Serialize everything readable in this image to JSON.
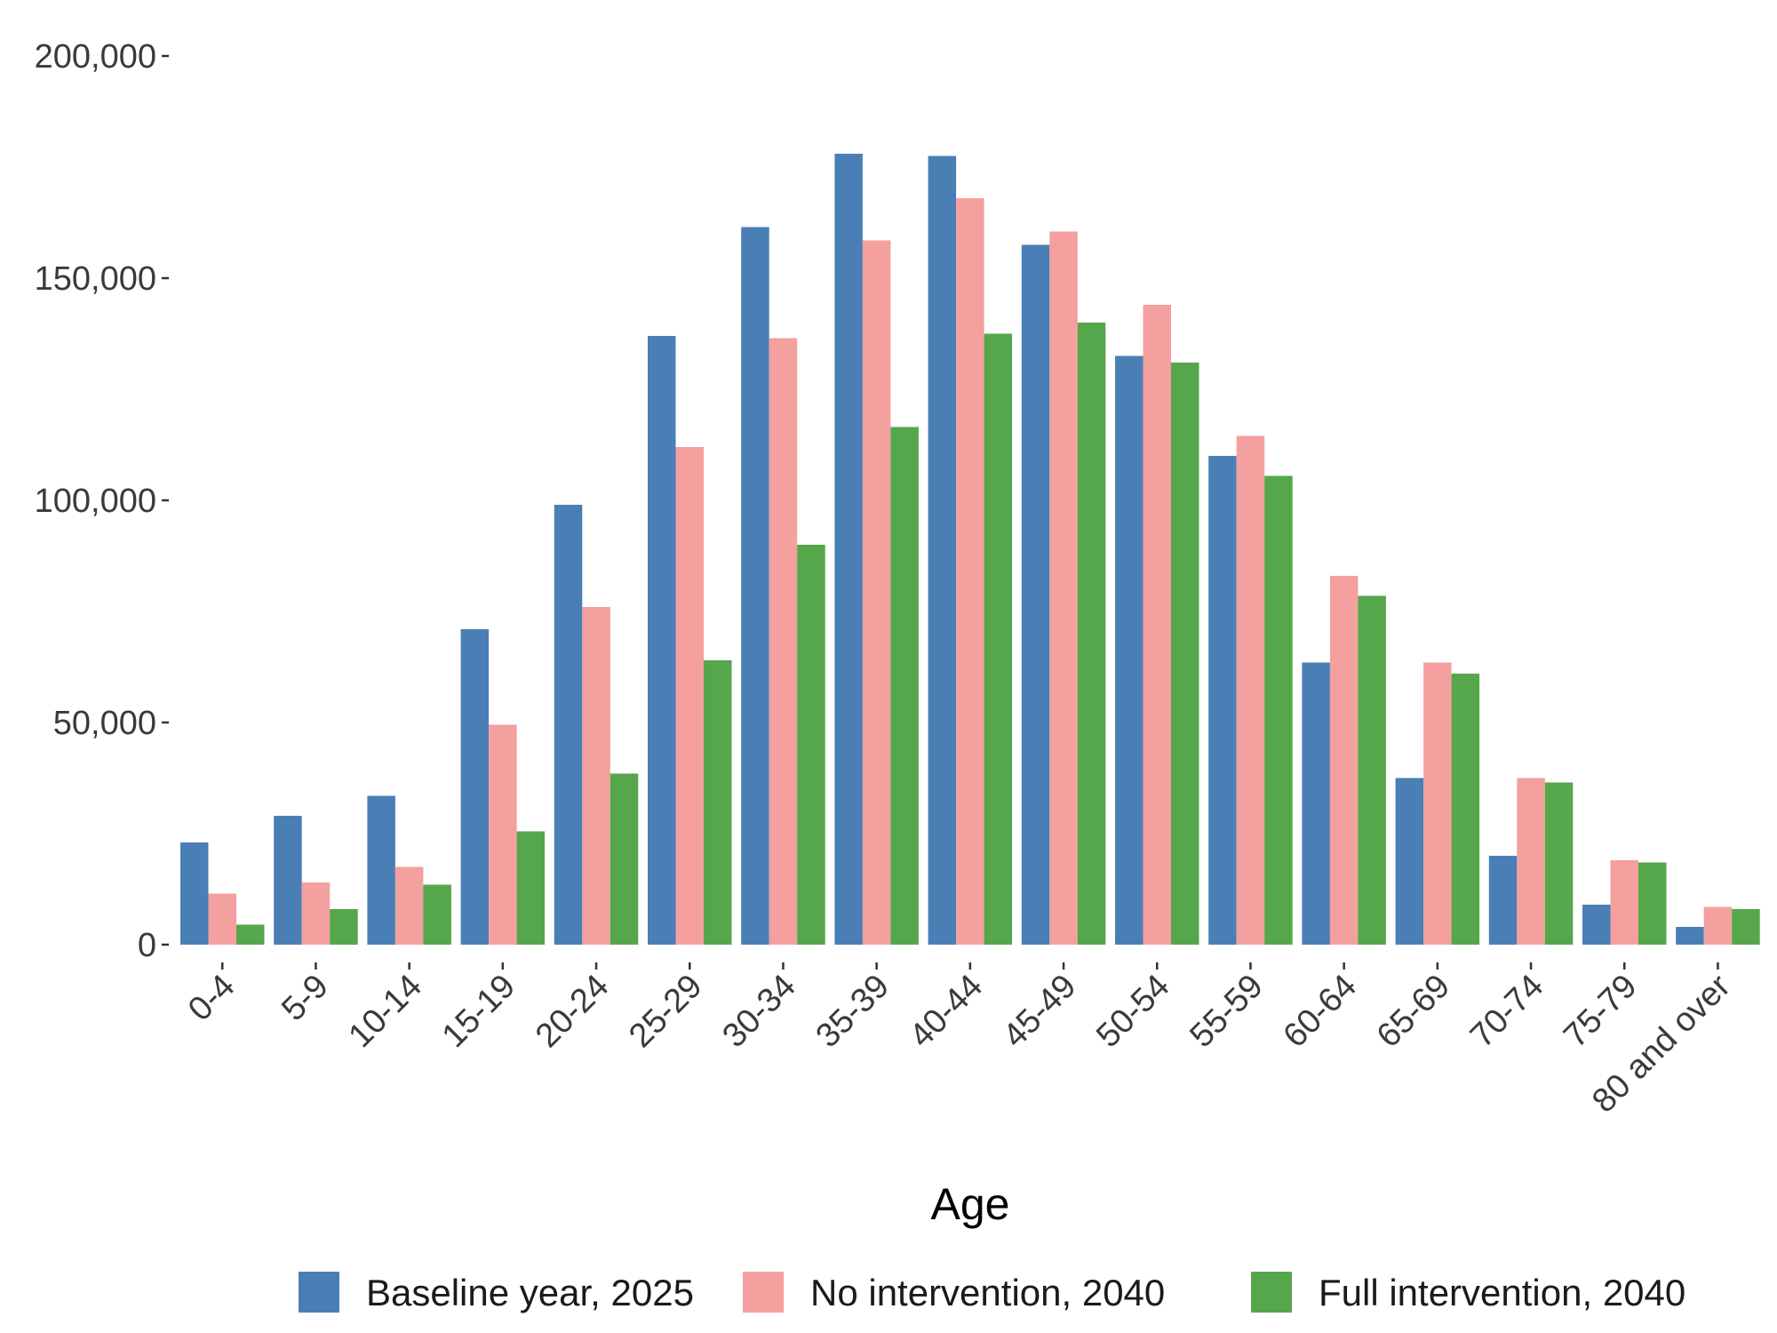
{
  "chart_data": {
    "type": "bar",
    "title": "",
    "xlabel": "Age",
    "ylabel": "",
    "ylim": [
      0,
      200000
    ],
    "yticks": [
      0,
      50000,
      100000,
      150000,
      200000
    ],
    "ytick_labels": [
      "0",
      "50,000",
      "100,000",
      "150,000",
      "200,000"
    ],
    "grid": false,
    "legend_position": "bottom",
    "categories": [
      "0-4",
      "5-9",
      "10-14",
      "15-19",
      "20-24",
      "25-29",
      "30-34",
      "35-39",
      "40-44",
      "45-49",
      "50-54",
      "55-59",
      "60-64",
      "65-69",
      "70-74",
      "75-79",
      "80 and over"
    ],
    "series": [
      {
        "name": "Baseline year, 2025",
        "color": "#4A7FB5",
        "values": [
          23000,
          29000,
          33500,
          71000,
          99000,
          137000,
          161500,
          178000,
          177500,
          157500,
          132500,
          110000,
          63500,
          37500,
          20000,
          9000,
          4000
        ]
      },
      {
        "name": "No intervention, 2040",
        "color": "#F4A09E",
        "values": [
          11500,
          14000,
          17500,
          49500,
          76000,
          112000,
          136500,
          158500,
          168000,
          160500,
          144000,
          114500,
          83000,
          63500,
          37500,
          19000,
          8500
        ]
      },
      {
        "name": "Full intervention, 2040",
        "color": "#56A64C",
        "values": [
          4500,
          8000,
          13500,
          25500,
          38500,
          64000,
          90000,
          116500,
          137500,
          140000,
          131000,
          105500,
          78500,
          61000,
          36500,
          18500,
          8000
        ]
      }
    ]
  }
}
